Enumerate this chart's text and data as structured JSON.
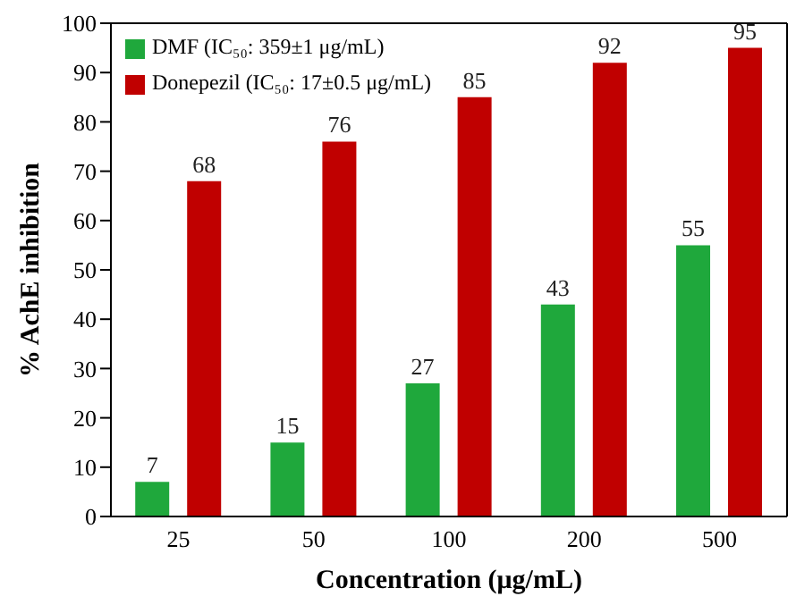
{
  "chart_data": {
    "type": "bar",
    "xlabel": "Concentration (μg/mL)",
    "ylabel": "% AchE inhibition",
    "categories": [
      "25",
      "50",
      "100",
      "200",
      "500"
    ],
    "series": [
      {
        "name": "DMF (IC₅₀: 359±1 μg/mL)",
        "color": "#1fa83c",
        "values": [
          7,
          15,
          27,
          43,
          55
        ]
      },
      {
        "name": "Donepezil (IC₅₀: 17±0.5 μg/mL)",
        "color": "#c00000",
        "values": [
          68,
          76,
          85,
          92,
          95
        ]
      }
    ],
    "ylim": [
      0,
      100
    ],
    "yticks": [
      0,
      10,
      20,
      30,
      40,
      50,
      60,
      70,
      80,
      90,
      100
    ],
    "grid": false,
    "legend": "top left",
    "data_labels": true
  }
}
